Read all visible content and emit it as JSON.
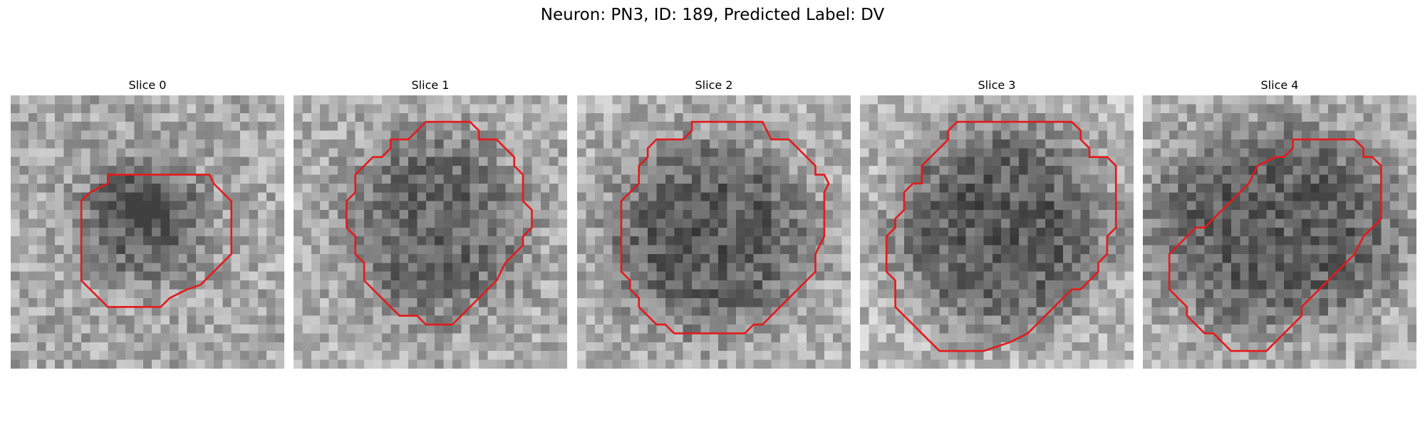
{
  "figure": {
    "title": "Neuron: PN3, ID: 189, Predicted Label: DV"
  },
  "colors": {
    "contour": "#e41a1c",
    "colormap": "gray"
  },
  "panels": [
    {
      "title": "Slice 0"
    },
    {
      "title": "Slice 1"
    },
    {
      "title": "Slice 2"
    },
    {
      "title": "Slice 3"
    },
    {
      "title": "Slice 4"
    }
  ]
}
